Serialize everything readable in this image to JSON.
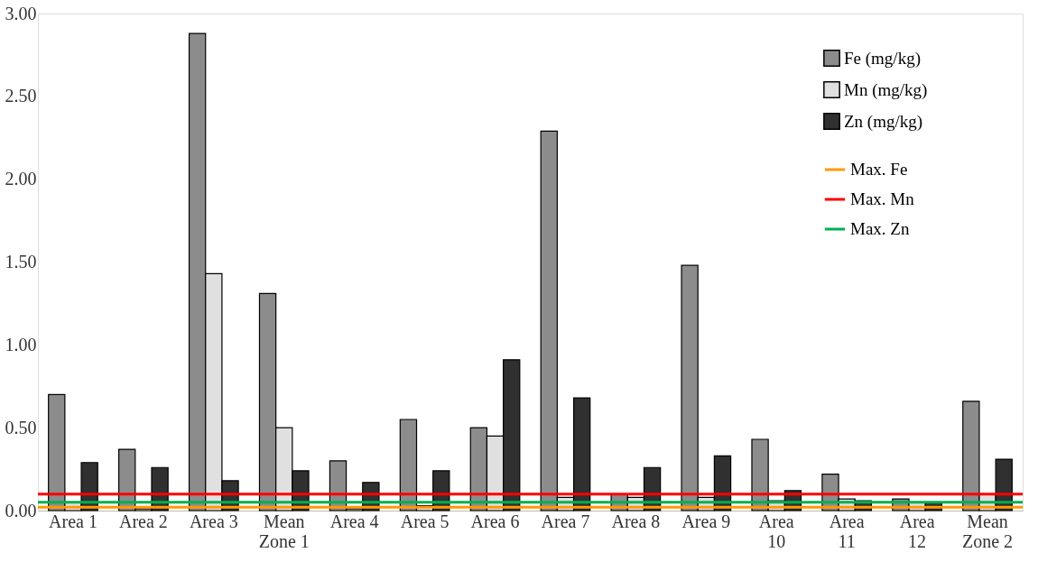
{
  "chart_data": {
    "type": "bar",
    "categories": [
      "Area 1",
      "Area 2",
      "Area 3",
      "Mean Zone 1",
      "Area 4",
      "Area 5",
      "Area 6",
      "Area 7",
      "Area 8",
      "Area 9",
      "Area 10",
      "Area 11",
      "Area 12",
      "Mean Zone 2"
    ],
    "series": [
      {
        "name": "Fe (mg/kg)",
        "color": "#8c8c8c",
        "values": [
          0.7,
          0.37,
          2.88,
          1.31,
          0.3,
          0.55,
          0.5,
          2.29,
          0.1,
          1.48,
          0.43,
          0.22,
          0.07,
          0.66
        ]
      },
      {
        "name": "Mn  (mg/kg)",
        "color": "#e0e0e0",
        "values": [
          0.05,
          0.01,
          1.43,
          0.5,
          0.01,
          0.03,
          0.45,
          0.08,
          0.08,
          0.08,
          0.06,
          0.07,
          0.05,
          0.1
        ]
      },
      {
        "name": "Zn  (mg/kg)",
        "color": "#303030",
        "values": [
          0.29,
          0.26,
          0.18,
          0.24,
          0.17,
          0.24,
          0.91,
          0.68,
          0.26,
          0.33,
          0.12,
          0.06,
          0.05,
          0.31
        ]
      }
    ],
    "ref_lines": [
      {
        "axis": "y",
        "value": 0.02,
        "label": "Max. Fe",
        "color": "#ff9900"
      },
      {
        "axis": "y",
        "value": 0.1,
        "label": "Max. Mn",
        "color": "#ff0000"
      },
      {
        "axis": "y",
        "value": 0.05,
        "label": "Max. Zn",
        "color": "#00b050"
      }
    ],
    "ylim": [
      0,
      3
    ],
    "yticks": [
      {
        "value": 0,
        "label": "0.00"
      },
      {
        "value": 0.5,
        "label": "0.50"
      },
      {
        "value": 1,
        "label": "1.00"
      },
      {
        "value": 1.5,
        "label": "1.50"
      },
      {
        "value": 2,
        "label": "2.00"
      },
      {
        "value": 2.5,
        "label": "2.50"
      },
      {
        "value": 3,
        "label": "3.00"
      }
    ],
    "grid": false,
    "legend": "top right"
  }
}
